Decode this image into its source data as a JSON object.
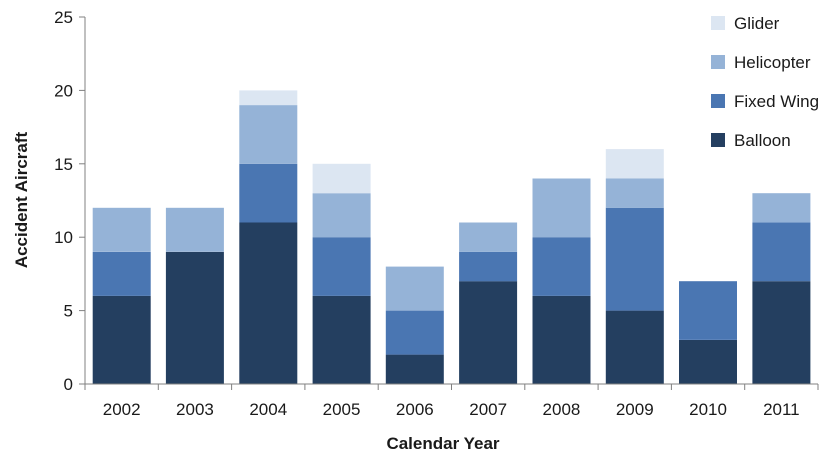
{
  "chart_data": {
    "type": "bar",
    "stacked": true,
    "categories": [
      "2002",
      "2003",
      "2004",
      "2005",
      "2006",
      "2007",
      "2008",
      "2009",
      "2010",
      "2011"
    ],
    "series": [
      {
        "name": "Balloon",
        "color": "#243f60",
        "values": [
          6,
          9,
          11,
          6,
          2,
          7,
          6,
          5,
          3,
          7
        ]
      },
      {
        "name": "Fixed Wing",
        "color": "#4a76b2",
        "values": [
          3,
          0,
          4,
          4,
          3,
          2,
          4,
          7,
          4,
          4
        ]
      },
      {
        "name": "Helicopter",
        "color": "#95b3d7",
        "values": [
          3,
          3,
          4,
          3,
          3,
          2,
          4,
          2,
          0,
          2
        ]
      },
      {
        "name": "Glider",
        "color": "#dce6f2",
        "values": [
          0,
          0,
          1,
          2,
          0,
          0,
          0,
          2,
          0,
          0
        ]
      }
    ],
    "title": "",
    "xlabel": "Calendar Year",
    "ylabel": "Accident Aircraft",
    "ylim": [
      0,
      25
    ],
    "yticks": [
      0,
      5,
      10,
      15,
      20,
      25
    ],
    "grid": false,
    "legend": {
      "placement": "top-right",
      "order": [
        "Glider",
        "Helicopter",
        "Fixed Wing",
        "Balloon"
      ]
    }
  }
}
